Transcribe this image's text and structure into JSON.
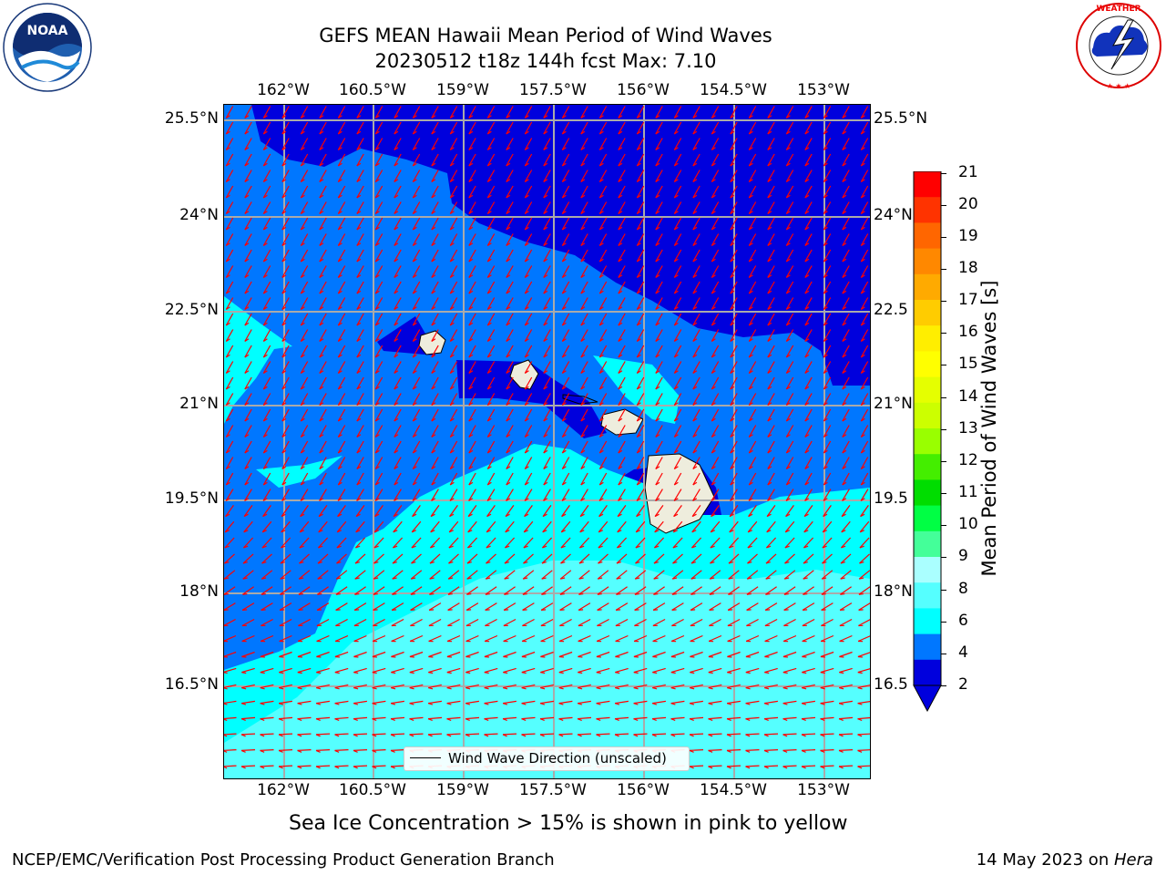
{
  "header": {
    "title_line1": "GEFS MEAN Hawaii Mean Period of Wind Waves",
    "title_line2": "20230512 t18z 144h fcst   Max: 7.10"
  },
  "logos": {
    "left": {
      "name": "NOAA",
      "ring_text": "NATIONAL OCEANIC AND ATMOSPHERIC ADMINISTRATION · U.S. DEPARTMENT OF COMMERCE"
    },
    "right": {
      "name": "NATIONAL WEATHER SERVICE"
    }
  },
  "map": {
    "lon_ticks": [
      "162°W",
      "160.5°W",
      "159°W",
      "157.5°W",
      "156°W",
      "154.5°W",
      "153°W"
    ],
    "lat_ticks_left": [
      "25.5°N",
      "24°N",
      "22.5°N",
      "21°N",
      "19.5°N",
      "18°N",
      "16.5°N"
    ],
    "lat_ticks_right": [
      "25.5°N",
      "24°N",
      "22.5",
      "21°N",
      "19.5",
      "18°N",
      "16.5"
    ],
    "legend_label": "Wind Wave Direction (unscaled)",
    "colors": {
      "dark_blue": "#0000dd",
      "mid_blue": "#0077ff",
      "cyan": "#00ffff",
      "light_cyan": "#55ffff",
      "land": "#eeeddd",
      "arrows": "#ff0000",
      "grid": "#aaaaaa"
    }
  },
  "colorbar": {
    "label": "Mean Period of Wind Waves [s]",
    "ticks": [
      "21",
      "20",
      "19",
      "18",
      "17",
      "16",
      "15",
      "14",
      "13",
      "12",
      "11",
      "10",
      "9",
      "8",
      "6",
      "4",
      "2"
    ],
    "colors": [
      "#ff0000",
      "#ff3300",
      "#ff6600",
      "#ff8800",
      "#ffaa00",
      "#ffcc00",
      "#ffee00",
      "#ffff00",
      "#e5ff00",
      "#ccff00",
      "#99ff00",
      "#44ee00",
      "#00dd00",
      "#00ff44",
      "#44ff99",
      "#aaffff",
      "#55ffff",
      "#00ffff",
      "#0077ff",
      "#0000dd"
    ]
  },
  "footer": {
    "caption": "Sea Ice Concentration > 15% is shown in pink to yellow",
    "left": "NCEP/EMC/Verification Post Processing Product Generation Branch",
    "right_prefix": "14 May 2023 on ",
    "right_host": "Hera"
  }
}
